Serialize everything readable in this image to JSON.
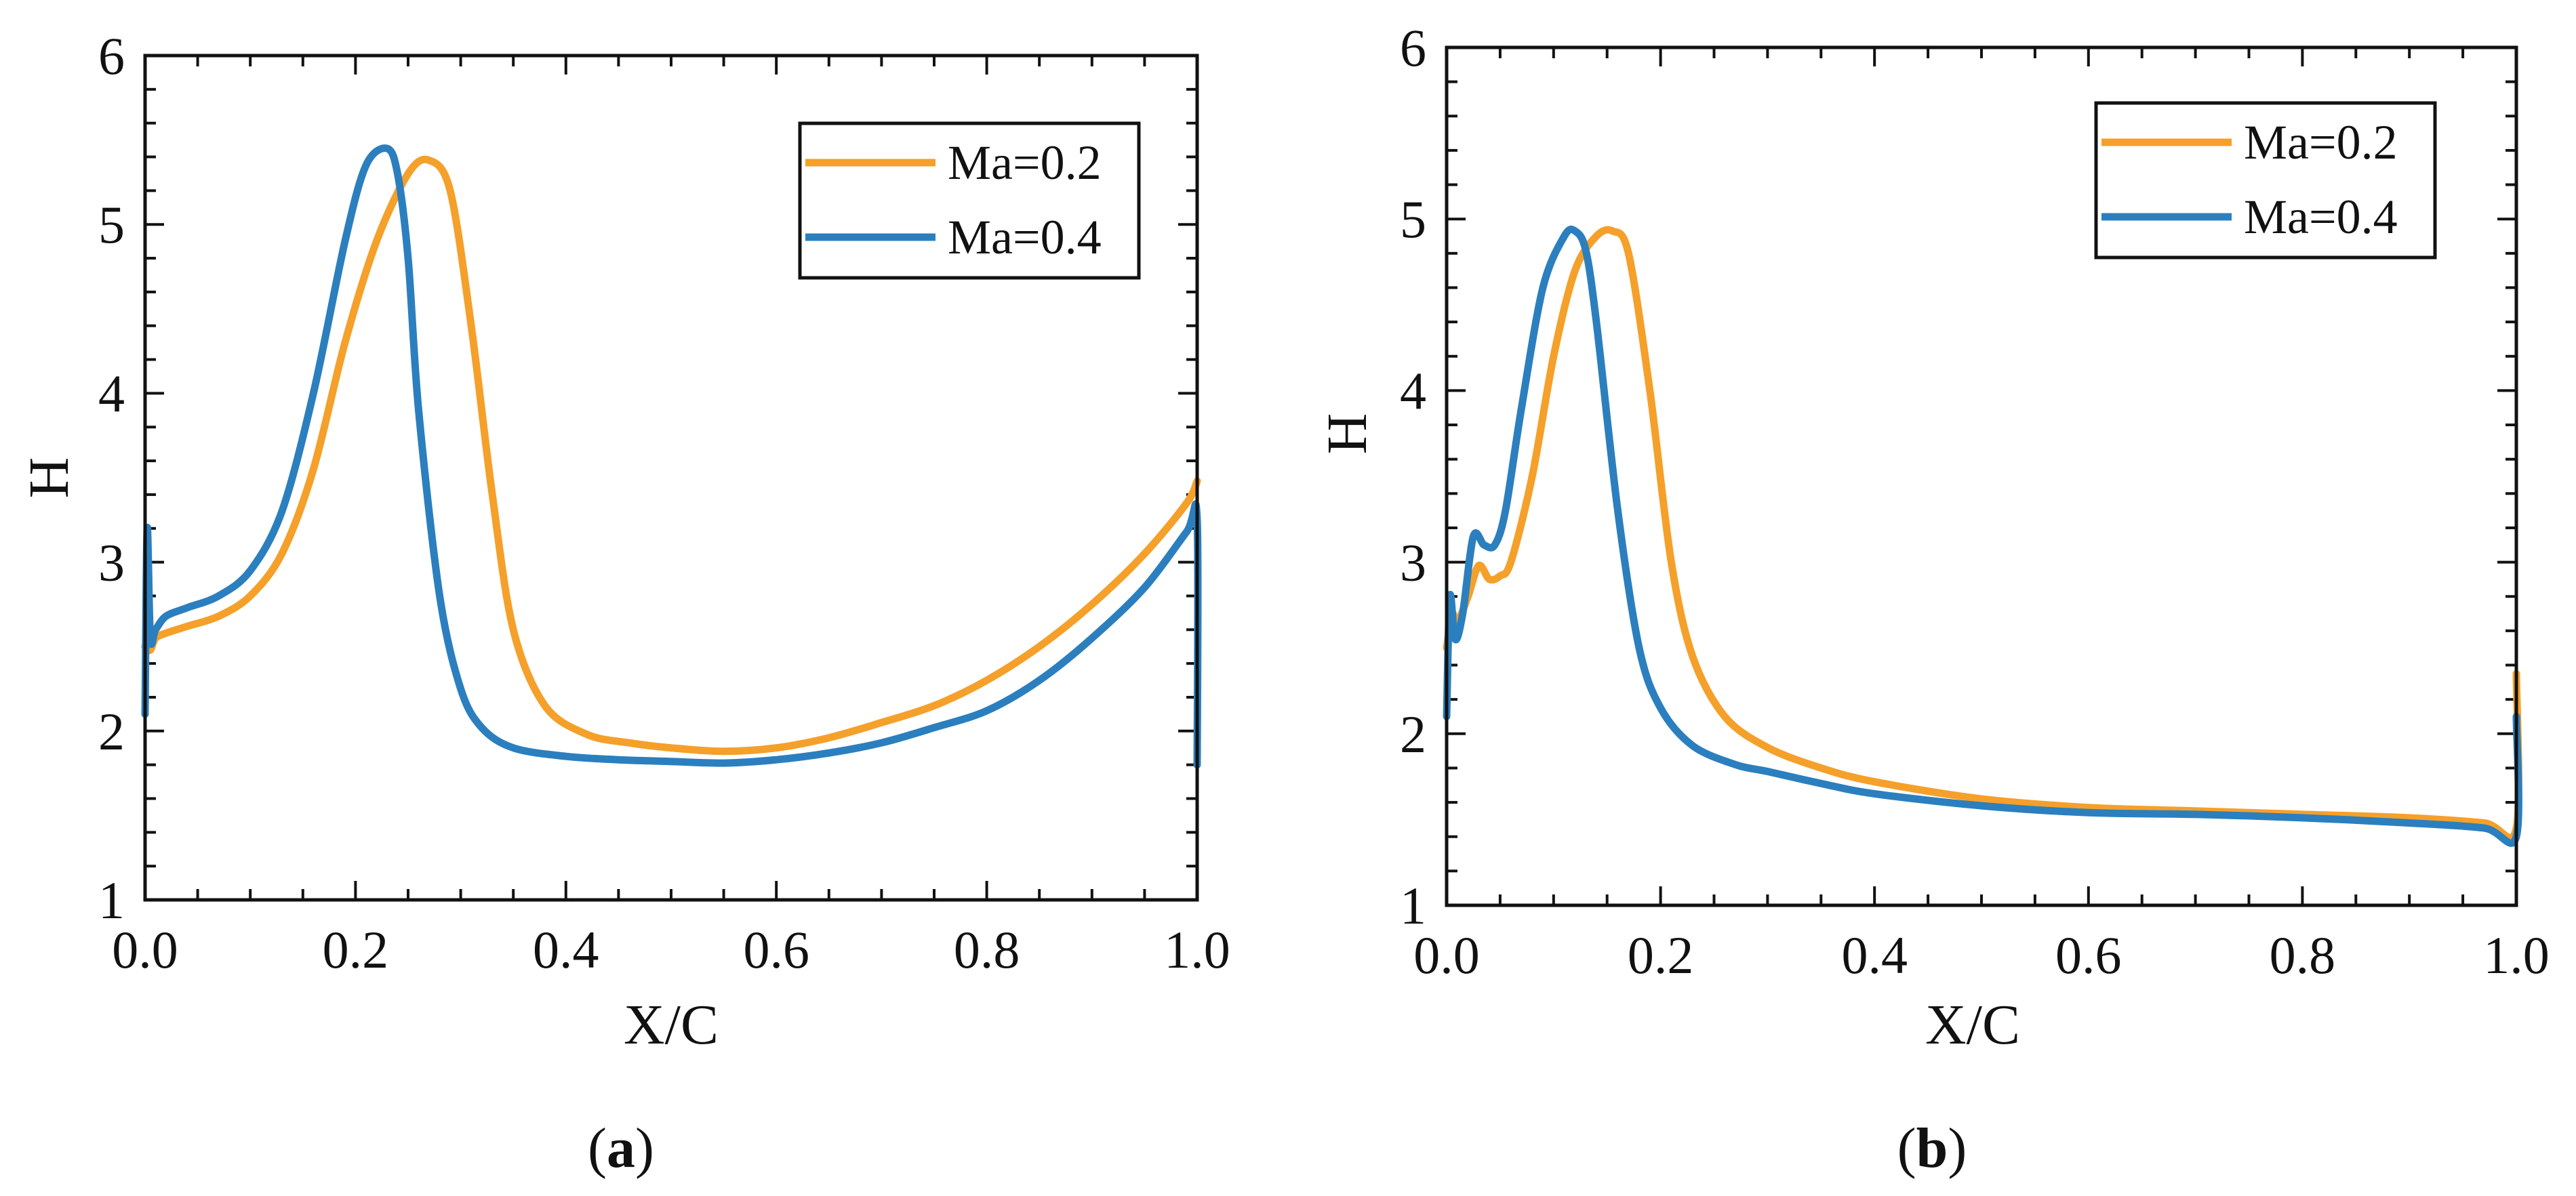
{
  "chart_data": [
    {
      "type": "line",
      "panel_label": "a",
      "xlabel": "X/C",
      "ylabel": "H",
      "xlim": [
        0,
        1
      ],
      "ylim": [
        1,
        6
      ],
      "x_ticks": [
        "0.0",
        "0.2",
        "0.4",
        "0.6",
        "0.8",
        "1.0"
      ],
      "y_ticks": [
        "1",
        "2",
        "3",
        "4",
        "5",
        "6"
      ],
      "legend_position": "top-right",
      "series": [
        {
          "name": "Ma=0.2",
          "color": "#F5A02A",
          "x": [
            0.0,
            0.005,
            0.01,
            0.02,
            0.04,
            0.07,
            0.1,
            0.13,
            0.16,
            0.19,
            0.22,
            0.25,
            0.27,
            0.29,
            0.31,
            0.33,
            0.35,
            0.38,
            0.42,
            0.46,
            0.5,
            0.55,
            0.6,
            0.65,
            0.7,
            0.75,
            0.8,
            0.85,
            0.9,
            0.95,
            0.99,
            1.0
          ],
          "y": [
            2.5,
            2.48,
            2.55,
            2.58,
            2.62,
            2.68,
            2.8,
            3.05,
            3.55,
            4.3,
            4.9,
            5.3,
            5.38,
            5.2,
            4.4,
            3.4,
            2.6,
            2.15,
            1.98,
            1.93,
            1.9,
            1.88,
            1.9,
            1.96,
            2.05,
            2.15,
            2.3,
            2.5,
            2.75,
            3.05,
            3.35,
            3.48
          ]
        },
        {
          "name": "Ma=0.4",
          "color": "#2B7FBE",
          "x": [
            0.0,
            0.002,
            0.005,
            0.01,
            0.02,
            0.04,
            0.07,
            0.1,
            0.13,
            0.16,
            0.19,
            0.21,
            0.23,
            0.24,
            0.25,
            0.26,
            0.28,
            0.3,
            0.32,
            0.35,
            0.4,
            0.45,
            0.5,
            0.55,
            0.6,
            0.65,
            0.7,
            0.75,
            0.8,
            0.85,
            0.9,
            0.95,
            0.99,
            1.0,
            1.0
          ],
          "y": [
            2.1,
            3.2,
            2.55,
            2.6,
            2.68,
            2.73,
            2.8,
            2.95,
            3.3,
            4.0,
            4.9,
            5.35,
            5.45,
            5.3,
            4.8,
            3.9,
            2.8,
            2.25,
            2.02,
            1.9,
            1.85,
            1.83,
            1.82,
            1.81,
            1.83,
            1.87,
            1.93,
            2.02,
            2.12,
            2.3,
            2.55,
            2.85,
            3.18,
            3.25,
            1.8
          ]
        }
      ]
    },
    {
      "type": "line",
      "panel_label": "b",
      "xlabel": "X/C",
      "ylabel": "H",
      "xlim": [
        0,
        1
      ],
      "ylim": [
        1,
        6
      ],
      "x_ticks": [
        "0.0",
        "0.2",
        "0.4",
        "0.6",
        "0.8",
        "1.0"
      ],
      "y_ticks": [
        "1",
        "2",
        "3",
        "4",
        "5",
        "6"
      ],
      "legend_position": "top-right",
      "series": [
        {
          "name": "Ma=0.2",
          "color": "#F5A02A",
          "x": [
            0.0,
            0.005,
            0.01,
            0.02,
            0.03,
            0.04,
            0.05,
            0.06,
            0.08,
            0.1,
            0.12,
            0.14,
            0.155,
            0.17,
            0.19,
            0.21,
            0.23,
            0.26,
            0.3,
            0.35,
            0.4,
            0.5,
            0.6,
            0.7,
            0.8,
            0.9,
            0.97,
            1.0,
            1.0
          ],
          "y": [
            2.5,
            2.7,
            2.65,
            2.8,
            2.98,
            2.9,
            2.92,
            3.0,
            3.5,
            4.2,
            4.7,
            4.9,
            4.93,
            4.8,
            4.0,
            3.0,
            2.45,
            2.1,
            1.92,
            1.8,
            1.72,
            1.62,
            1.57,
            1.55,
            1.53,
            1.51,
            1.48,
            1.45,
            2.35
          ]
        },
        {
          "name": "Ma=0.4",
          "color": "#2B7FBE",
          "x": [
            0.0,
            0.003,
            0.008,
            0.015,
            0.025,
            0.035,
            0.045,
            0.055,
            0.07,
            0.09,
            0.11,
            0.12,
            0.13,
            0.14,
            0.16,
            0.18,
            0.2,
            0.23,
            0.27,
            0.3,
            0.35,
            0.4,
            0.5,
            0.6,
            0.7,
            0.8,
            0.9,
            0.97,
            1.0,
            1.0
          ],
          "y": [
            2.1,
            2.8,
            2.55,
            2.7,
            3.15,
            3.1,
            3.1,
            3.3,
            3.9,
            4.6,
            4.9,
            4.93,
            4.82,
            4.4,
            3.3,
            2.5,
            2.15,
            1.93,
            1.82,
            1.78,
            1.71,
            1.65,
            1.58,
            1.54,
            1.53,
            1.51,
            1.48,
            1.45,
            1.4,
            2.1
          ]
        }
      ]
    }
  ]
}
